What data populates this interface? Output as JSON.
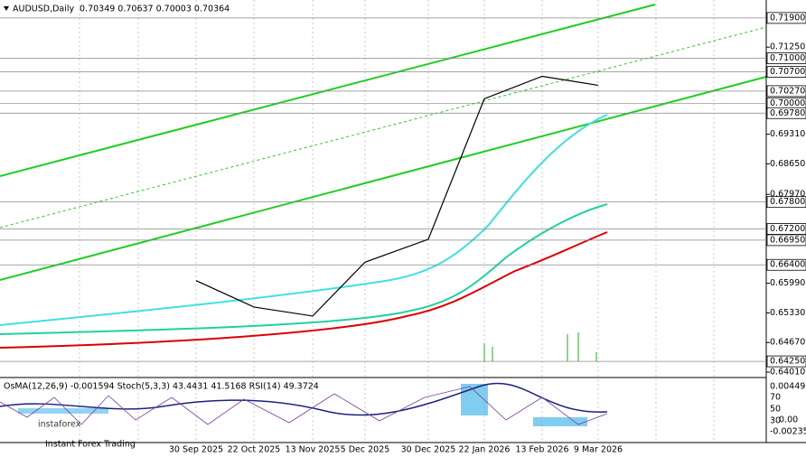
{
  "header": {
    "symbol": "AUDUSD,Daily",
    "ohlc": "0.70349 0.70637 0.70003 0.70364"
  },
  "chart_data": {
    "type": "line",
    "title": "AUDUSD,Daily",
    "categories": [
      "30 Sep 2025",
      "22 Oct 2025",
      "13 Nov 2025",
      "5 Dec 2025",
      "30 Dec 2025",
      "22 Jan 2026",
      "13 Feb 2026",
      "9 Mar 2026"
    ],
    "series": [
      {
        "name": "AUDUSD",
        "color": "#000000",
        "values": [
          0.6605,
          0.6546,
          0.6526,
          0.6646,
          0.6697,
          0.701,
          0.706,
          0.704
        ]
      }
    ],
    "ylim": [
      0.6389,
      0.723
    ],
    "yticks": [
      {
        "value": 0.719,
        "label": "0.71900"
      },
      {
        "value": 0.7125,
        "label": "0.71250"
      },
      {
        "value": 0.71,
        "label": "0.71000"
      },
      {
        "value": 0.707,
        "label": "0.70700"
      },
      {
        "value": 0.7027,
        "label": "0.70270"
      },
      {
        "value": 0.7,
        "label": "0.70000"
      },
      {
        "value": 0.6978,
        "label": "0.69780"
      },
      {
        "value": 0.6931,
        "label": "0.69310"
      },
      {
        "value": 0.6865,
        "label": "0.68650"
      },
      {
        "value": 0.6797,
        "label": "0.67970"
      },
      {
        "value": 0.678,
        "label": "0.67800"
      },
      {
        "value": 0.672,
        "label": "0.67200"
      },
      {
        "value": 0.6695,
        "label": "0.66950"
      },
      {
        "value": 0.664,
        "label": "0.66400"
      },
      {
        "value": 0.6599,
        "label": "0.65990"
      },
      {
        "value": 0.6533,
        "label": "0.65330"
      },
      {
        "value": 0.6467,
        "label": "0.64670"
      },
      {
        "value": 0.6425,
        "label": "0.64250"
      },
      {
        "value": 0.6401,
        "label": "0.64010"
      }
    ],
    "boxed": [
      0,
      2,
      3,
      4,
      5,
      6,
      10,
      11,
      12,
      13,
      17
    ]
  },
  "indicator": {
    "label": "OsMA(12,26,9) -0.001594  Stoch(5,3,3) 43.4431 41.5168  RSI(14) 49.3724",
    "axis": [
      "0.004492",
      "70",
      "50",
      "30",
      "0.00",
      "-0.002355"
    ]
  },
  "logo": {
    "name": "instaforex",
    "tagline": "Instant Forex Trading"
  }
}
